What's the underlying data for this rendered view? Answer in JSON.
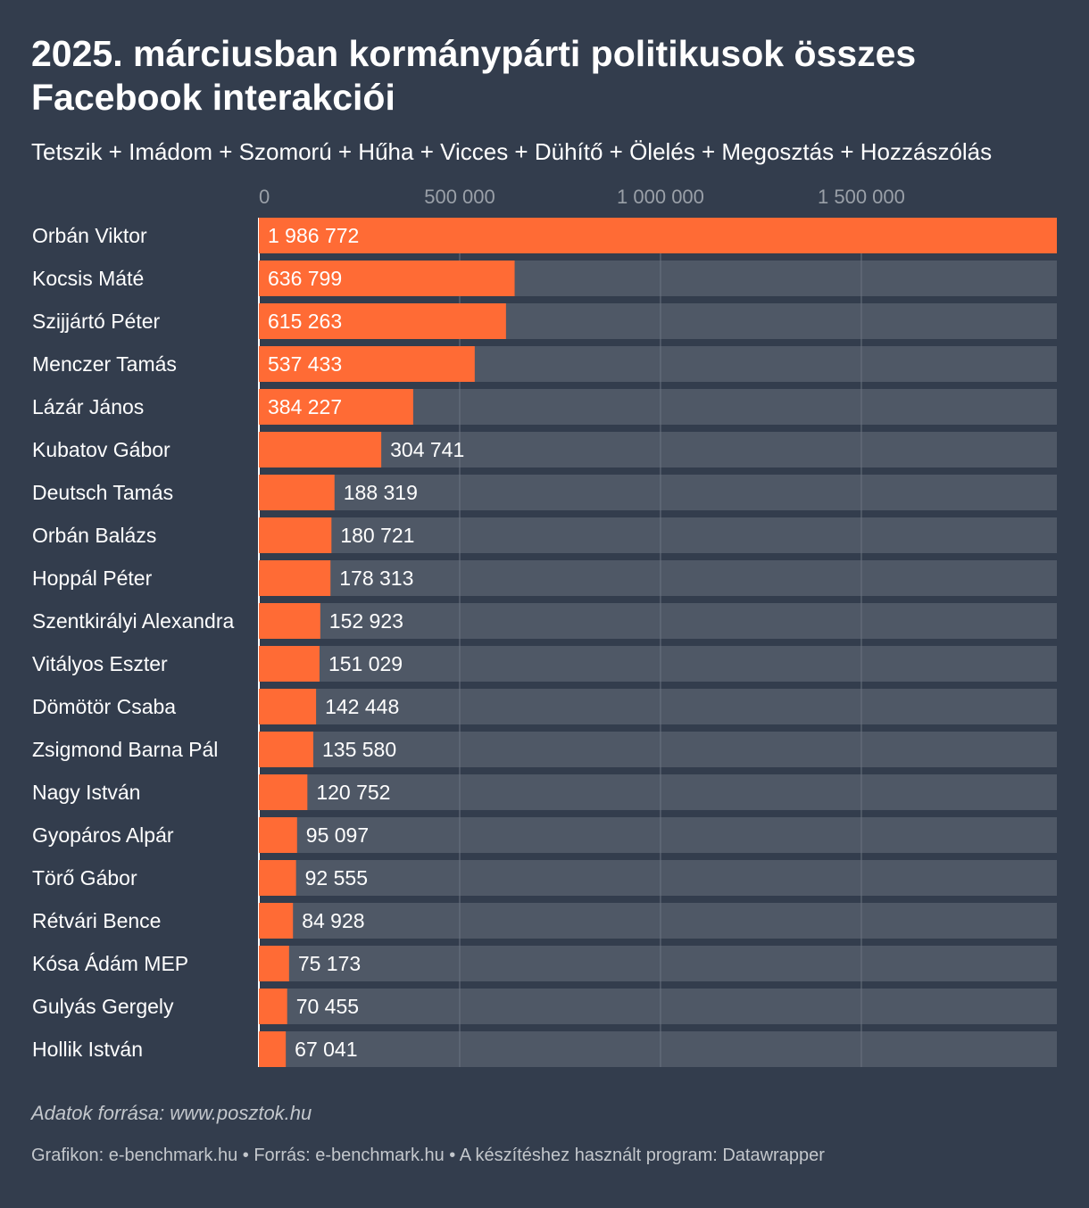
{
  "title": "2025. márciusban kormánypárti politikusok összes Facebook interakciói",
  "subtitle": "Tetszik + Imádom + Szomorú + Hűha + Vicces + Dühítő + Ölelés + Megosztás + Hozzászólás",
  "note": "Adatok forrása: www.posztok.hu",
  "footer": "Grafikon: e-benchmark.hu • Forrás: e-benchmark.hu • A készítéshez használt program: Datawrapper",
  "colors": {
    "background": "#333d4d",
    "bar": "#ff6b35",
    "track": "#4f5866",
    "grid": "#6a7380"
  },
  "chart_data": {
    "type": "bar",
    "orientation": "horizontal",
    "title": "2025. márciusban kormánypárti politikusok összes Facebook interakciói",
    "xlabel": "",
    "ylabel": "",
    "xlim": [
      0,
      1986772
    ],
    "ticks": [
      0,
      500000,
      1000000,
      1500000
    ],
    "tick_labels": [
      "0",
      "500 000",
      "1 000 000",
      "1 500 000"
    ],
    "grid": true,
    "categories": [
      "Orbán Viktor",
      "Kocsis Máté",
      "Szijjártó Péter",
      "Menczer Tamás",
      "Lázár János",
      "Kubatov Gábor",
      "Deutsch Tamás",
      "Orbán Balázs",
      "Hoppál Péter",
      "Szentkirályi Alexandra",
      "Vitályos Eszter",
      "Dömötör Csaba",
      "Zsigmond Barna Pál",
      "Nagy István",
      "Gyopáros Alpár",
      "Törő Gábor",
      "Rétvári Bence",
      "Kósa Ádám MEP",
      "Gulyás Gergely",
      "Hollik István"
    ],
    "values": [
      1986772,
      636799,
      615263,
      537433,
      384227,
      304741,
      188319,
      180721,
      178313,
      152923,
      151029,
      142448,
      135580,
      120752,
      95097,
      92555,
      84928,
      75173,
      70455,
      67041
    ],
    "value_labels": [
      "1 986 772",
      "636 799",
      "615 263",
      "537 433",
      "384 227",
      "304 741",
      "188 319",
      "180 721",
      "178 313",
      "152 923",
      "151 029",
      "142 448",
      "135 580",
      "120 752",
      "95 097",
      "92 555",
      "84 928",
      "75 173",
      "70 455",
      "67 041"
    ]
  }
}
